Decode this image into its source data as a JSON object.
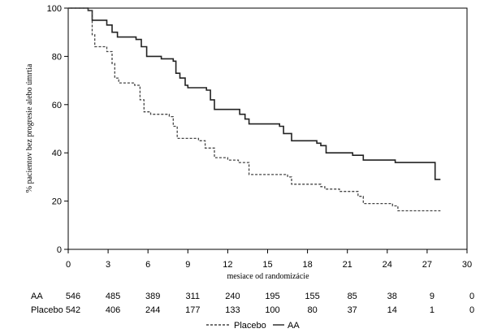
{
  "chart_data": {
    "type": "line",
    "xlabel": "mesiace od randomizácie",
    "ylabel": "% pacientov bez progresie alebo úmrtia",
    "xlim": [
      0,
      30
    ],
    "ylim": [
      0,
      100
    ],
    "xticks": [
      0,
      3,
      6,
      9,
      12,
      15,
      18,
      21,
      24,
      27,
      30
    ],
    "yticks": [
      0,
      20,
      40,
      60,
      80,
      100
    ],
    "grid": false,
    "legend_position": "bottom",
    "series": [
      {
        "name": "AA",
        "style": "solid",
        "color": "#222222",
        "points": [
          [
            0,
            100
          ],
          [
            1.5,
            99
          ],
          [
            1.8,
            95
          ],
          [
            2.9,
            93
          ],
          [
            3.3,
            90
          ],
          [
            3.7,
            88
          ],
          [
            5.1,
            87
          ],
          [
            5.5,
            84
          ],
          [
            5.9,
            80
          ],
          [
            7.0,
            79
          ],
          [
            7.9,
            78
          ],
          [
            8.1,
            73
          ],
          [
            8.4,
            71
          ],
          [
            8.8,
            68
          ],
          [
            9.0,
            67
          ],
          [
            10.4,
            66
          ],
          [
            10.7,
            62
          ],
          [
            11.0,
            58
          ],
          [
            12.6,
            58
          ],
          [
            12.9,
            56
          ],
          [
            13.3,
            54
          ],
          [
            13.6,
            52
          ],
          [
            15.9,
            51
          ],
          [
            16.2,
            48
          ],
          [
            16.8,
            45
          ],
          [
            18.7,
            44
          ],
          [
            19.0,
            43
          ],
          [
            19.4,
            40
          ],
          [
            21.4,
            39
          ],
          [
            22.2,
            37
          ],
          [
            24.5,
            37
          ],
          [
            24.6,
            36
          ],
          [
            27.4,
            36
          ],
          [
            27.6,
            29
          ],
          [
            28.0,
            29
          ]
        ]
      },
      {
        "name": "Placebo",
        "style": "dashed",
        "color": "#444444",
        "points": [
          [
            0,
            100
          ],
          [
            1.5,
            99
          ],
          [
            1.8,
            89
          ],
          [
            2.0,
            84
          ],
          [
            2.9,
            82
          ],
          [
            3.3,
            77
          ],
          [
            3.5,
            71
          ],
          [
            3.8,
            69
          ],
          [
            5.0,
            68
          ],
          [
            5.4,
            62
          ],
          [
            5.7,
            57
          ],
          [
            6.2,
            56
          ],
          [
            7.6,
            55
          ],
          [
            7.9,
            51
          ],
          [
            8.2,
            46
          ],
          [
            9.8,
            45
          ],
          [
            10.3,
            42
          ],
          [
            11.0,
            38
          ],
          [
            12.0,
            37
          ],
          [
            12.8,
            36
          ],
          [
            13.6,
            31
          ],
          [
            16.5,
            30
          ],
          [
            16.8,
            27
          ],
          [
            19.0,
            26
          ],
          [
            19.3,
            25
          ],
          [
            20.4,
            24
          ],
          [
            21.1,
            24
          ],
          [
            21.8,
            22
          ],
          [
            22.2,
            19
          ],
          [
            24.4,
            18
          ],
          [
            24.8,
            16
          ],
          [
            28.0,
            16
          ]
        ]
      }
    ],
    "risk_table": {
      "x": [
        0,
        3,
        6,
        9,
        12,
        15,
        18,
        21,
        24,
        27,
        30
      ],
      "rows": [
        {
          "label": "AA",
          "values": [
            "546",
            "485",
            "389",
            "311",
            "240",
            "195",
            "155",
            "85",
            "38",
            "9",
            "0"
          ]
        },
        {
          "label": "Placebo",
          "values": [
            "542",
            "406",
            "244",
            "177",
            "133",
            "100",
            "80",
            "37",
            "14",
            "1",
            "0"
          ]
        }
      ]
    },
    "legend": [
      {
        "label": "Placebo",
        "style": "dashed"
      },
      {
        "label": "AA",
        "style": "solid"
      }
    ]
  }
}
